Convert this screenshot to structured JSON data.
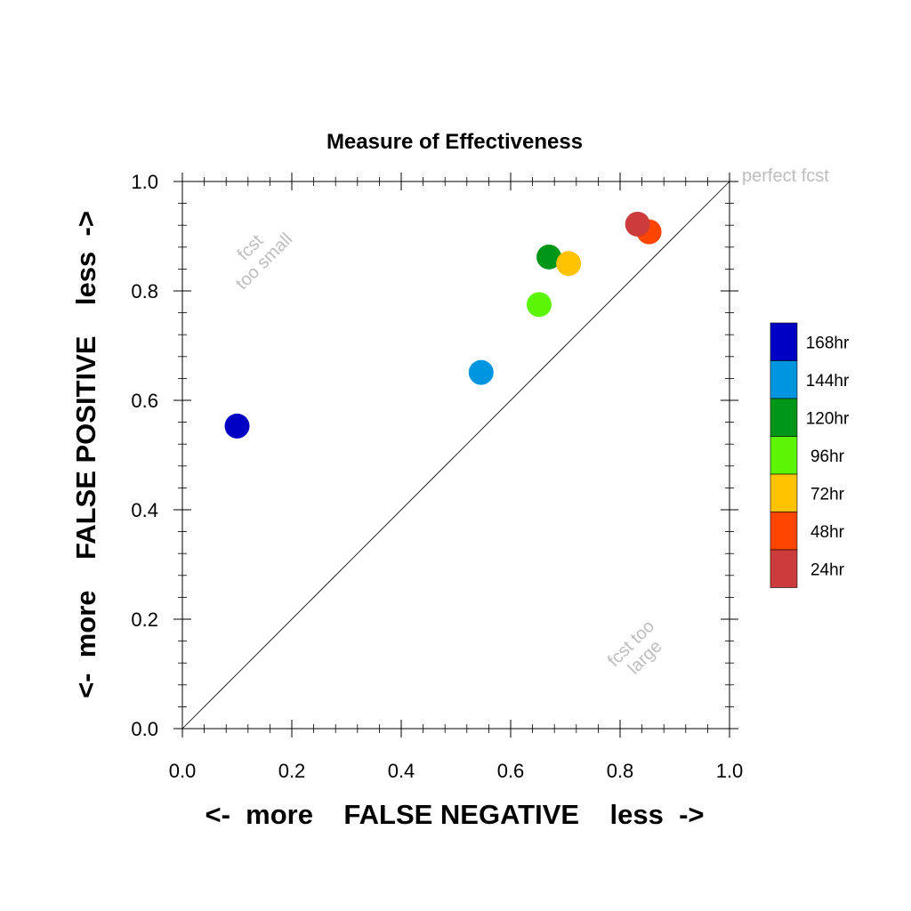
{
  "chart_data": {
    "type": "scatter",
    "title": "Measure of Effectiveness",
    "xlabel": "<-  more    FALSE NEGATIVE    less  ->",
    "ylabel": "<-  more    FALSE POSITIVE    less  ->",
    "xlim": [
      0,
      1
    ],
    "ylim": [
      0,
      1
    ],
    "xticks": [
      "0.0",
      "0.2",
      "0.4",
      "0.6",
      "0.8",
      "1.0"
    ],
    "yticks": [
      "0.0",
      "0.2",
      "0.4",
      "0.6",
      "0.8",
      "1.0"
    ],
    "diagonal_line": true,
    "grid": false,
    "legend_position": "right",
    "annotations": {
      "perfect": "perfect fcst",
      "too_small_1": "fcst",
      "too_small_2": "too small",
      "too_large_1": "fcst too",
      "too_large_2": "large"
    },
    "series": [
      {
        "name": "168hr",
        "color": "#0000c4",
        "x": 0.1,
        "y": 0.553
      },
      {
        "name": "144hr",
        "color": "#0096df",
        "x": 0.546,
        "y": 0.651
      },
      {
        "name": "120hr",
        "color": "#009618",
        "x": 0.67,
        "y": 0.862
      },
      {
        "name": "96hr",
        "color": "#5cf505",
        "x": 0.652,
        "y": 0.775
      },
      {
        "name": "72hr",
        "color": "#ffc200",
        "x": 0.706,
        "y": 0.85
      },
      {
        "name": "48hr",
        "color": "#ff4500",
        "x": 0.853,
        "y": 0.908
      },
      {
        "name": "24hr",
        "color": "#cc3c3c",
        "x": 0.832,
        "y": 0.922
      }
    ]
  }
}
